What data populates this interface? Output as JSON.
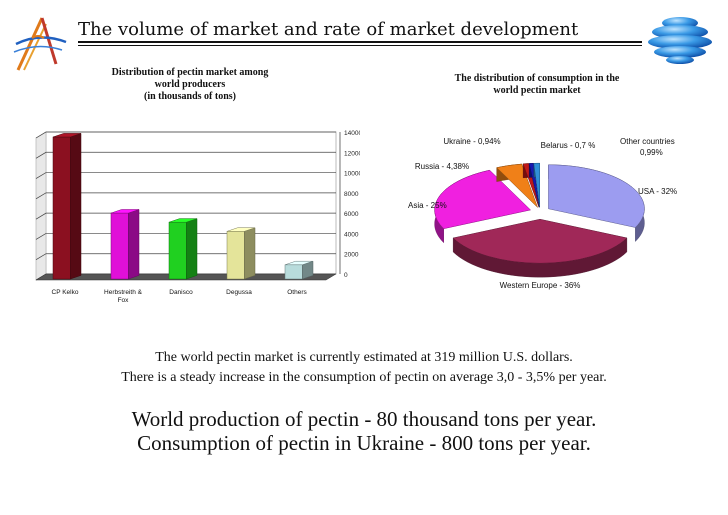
{
  "header": {
    "title": "The volume of market and rate of market development",
    "logo_icon": "decorative-logo-icon",
    "orb_icon": "blue-orb-icon"
  },
  "left_chart_caption": [
    "Distribution of pectin market among",
    "world producers",
    "(in thousands of tons)"
  ],
  "right_chart_caption": [
    "The distribution of consumption in the",
    "world pectin market"
  ],
  "body_lines": [
    "The world pectin market is currently estimated at 319 million U.S. dollars.",
    "There is a steady increase in the consumption of pectin on average 3,0 - 3,5% per year."
  ],
  "highlight_lines": [
    "World production of pectin - 80 thousand tons per year.",
    "Consumption of pectin in Ukraine - 800 tons per year."
  ],
  "chart_data": [
    {
      "type": "bar",
      "categories": [
        "CP Kelko",
        "Herbstreith & Fox",
        "Danisco",
        "Degussa",
        "Others"
      ],
      "category_lines": [
        [
          "CP Kelko"
        ],
        [
          "Herbstreith &",
          "Fox"
        ],
        [
          "Danisco"
        ],
        [
          "Degussa"
        ],
        [
          "Others"
        ]
      ],
      "values": [
        14000,
        6500,
        5600,
        4700,
        1400
      ],
      "colors": [
        "#8B1020",
        "#E010D8",
        "#20D020",
        "#E4E49A",
        "#B8DCDC"
      ],
      "yticks": [
        0,
        2000,
        4000,
        6000,
        8000,
        10000,
        12000,
        14000
      ],
      "ylim": [
        0,
        14000
      ],
      "grid": true
    },
    {
      "type": "pie",
      "labels": [
        "USA - 32%",
        "Western Europe - 36%",
        "Asia - 25%",
        "Russia - 4,38%",
        "Ukraine - 0,94%",
        "Belarus - 0,7 %",
        "Other countries 0,99%"
      ],
      "values": [
        32,
        36,
        25,
        4.38,
        0.94,
        0.7,
        0.99
      ],
      "colors": [
        "#9C9CF0",
        "#A02858",
        "#F020E0",
        "#F08018",
        "#C01818",
        "#1818B0",
        "#3090D8"
      ],
      "label_lines": [
        [
          "USA - 32%"
        ],
        [
          "Western Europe - 36%"
        ],
        [
          "Asia - 25%"
        ],
        [
          "Russia - 4,38%"
        ],
        [
          "Ukraine - 0,94%"
        ],
        [
          "Belarus - 0,7 %"
        ],
        [
          "Other countries",
          "0,99%"
        ]
      ]
    }
  ]
}
